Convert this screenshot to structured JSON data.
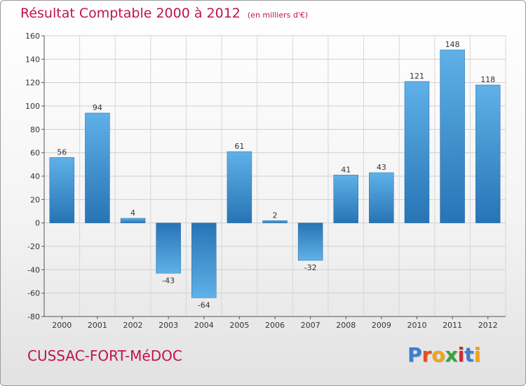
{
  "header": {
    "title": "Résultat Comptable 2000 à 2012",
    "subtitle": "(en milliers d'€)"
  },
  "footer": {
    "commune": "CUSSAC-FORT-MéDOC",
    "logo_letters": [
      "P",
      "r",
      "o",
      "x",
      "i",
      "t",
      "i"
    ],
    "logo_colors": [
      "#3a7fd0",
      "#e3501e",
      "#f0a418",
      "#3aa33a",
      "#d22b2b",
      "#3a7fd0",
      "#f0a418"
    ]
  },
  "chart_data": {
    "type": "bar",
    "categories": [
      "2000",
      "2001",
      "2002",
      "2003",
      "2004",
      "2005",
      "2006",
      "2007",
      "2008",
      "2009",
      "2010",
      "2011",
      "2012"
    ],
    "values": [
      56,
      94,
      4,
      -43,
      -64,
      61,
      2,
      -32,
      41,
      43,
      121,
      148,
      118
    ],
    "ylim": [
      -80,
      160
    ],
    "yticks": [
      -80,
      -60,
      -40,
      -20,
      0,
      20,
      40,
      60,
      80,
      100,
      120,
      140,
      160
    ],
    "grid": true,
    "bar_color_light": "#5aaee6",
    "bar_color_dark": "#2a78b8"
  }
}
